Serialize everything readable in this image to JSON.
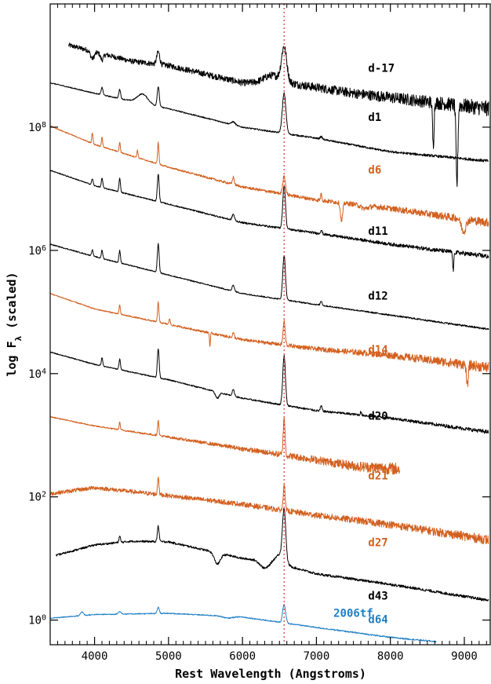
{
  "chart_data": {
    "type": "line",
    "title": "",
    "xlabel": "Rest Wavelength (Angstroms)",
    "ylabel_main": "log F",
    "ylabel_sub": "λ",
    "ylabel_tail": " (scaled)",
    "xlim": [
      3400,
      9350
    ],
    "ylim_log10": [
      -0.4,
      10.0
    ],
    "yscale": "log",
    "x_ticks": [
      4000,
      5000,
      6000,
      7000,
      8000,
      9000
    ],
    "x_tick_labels": [
      "4000",
      "5000",
      "6000",
      "7000",
      "8000",
      "9000"
    ],
    "y_ticks": [
      {
        "exp": 0,
        "base": "10",
        "sup": "0"
      },
      {
        "exp": 2,
        "base": "10",
        "sup": "2"
      },
      {
        "exp": 4,
        "base": "10",
        "sup": "4"
      },
      {
        "exp": 6,
        "base": "10",
        "sup": "6"
      },
      {
        "exp": 8,
        "base": "10",
        "sup": "8"
      }
    ],
    "halpha_marker": {
      "x": 6563,
      "color": "#e03030"
    },
    "colors": {
      "black": "#000000",
      "orange": "#d2601f",
      "blue": "#1f7fc4"
    },
    "spectra": [
      {
        "name": "d-17",
        "color": "#000000",
        "xmin": 3650,
        "xmax": 9330,
        "anchors": [
          [
            3650,
            9.33
          ],
          [
            4500,
            9.07
          ],
          [
            5000,
            9.0
          ],
          [
            6000,
            8.72
          ],
          [
            6600,
            8.72
          ],
          [
            7500,
            8.55
          ],
          [
            9330,
            8.3
          ]
        ],
        "lines": [
          [
            4861,
            0.2,
            20
          ],
          [
            6563,
            0.55,
            35
          ],
          [
            3970,
            -0.12,
            25
          ],
          [
            4100,
            -0.1,
            20
          ],
          [
            6400,
            0.12,
            110
          ],
          [
            8900,
            -1.3,
            12
          ],
          [
            8580,
            -0.7,
            10
          ]
        ],
        "noise_lo": 0.05,
        "noise_hi": 0.16
      },
      {
        "name": "d1",
        "color": "#000000",
        "xmin": 3400,
        "xmax": 9330,
        "anchors": [
          [
            3400,
            8.72
          ],
          [
            4000,
            8.55
          ],
          [
            5000,
            8.3
          ],
          [
            6000,
            8.0
          ],
          [
            7000,
            7.82
          ],
          [
            8000,
            7.6
          ],
          [
            9330,
            7.45
          ]
        ],
        "lines": [
          [
            4101,
            0.12,
            12
          ],
          [
            4340,
            0.15,
            12
          ],
          [
            4650,
            0.15,
            70
          ],
          [
            4861,
            0.32,
            14
          ],
          [
            5876,
            0.05,
            25
          ],
          [
            6563,
            0.65,
            24
          ],
          [
            7065,
            0.04,
            15
          ]
        ],
        "noise_lo": 0.01,
        "noise_hi": 0.03
      },
      {
        "name": "d6",
        "color": "#d2601f",
        "xmin": 3400,
        "xmax": 9330,
        "anchors": [
          [
            3400,
            8.02
          ],
          [
            4000,
            7.72
          ],
          [
            5000,
            7.35
          ],
          [
            6000,
            7.03
          ],
          [
            7000,
            6.82
          ],
          [
            8000,
            6.68
          ],
          [
            9330,
            6.45
          ]
        ],
        "lines": [
          [
            3970,
            0.18,
            8
          ],
          [
            4101,
            0.16,
            8
          ],
          [
            4340,
            0.16,
            8
          ],
          [
            4580,
            0.12,
            8
          ],
          [
            4861,
            0.35,
            9
          ],
          [
            5876,
            0.12,
            12
          ],
          [
            6563,
            0.3,
            18
          ],
          [
            7065,
            0.1,
            10
          ],
          [
            7340,
            -0.3,
            15
          ],
          [
            8990,
            -0.2,
            30
          ],
          [
            7650,
            -0.05,
            50
          ]
        ],
        "noise_lo": 0.01,
        "noise_hi": 0.09
      },
      {
        "name": "d11",
        "color": "#000000",
        "xmin": 3400,
        "xmax": 9330,
        "anchors": [
          [
            3400,
            7.3
          ],
          [
            4000,
            7.05
          ],
          [
            5000,
            6.75
          ],
          [
            6000,
            6.45
          ],
          [
            7000,
            6.28
          ],
          [
            8000,
            6.1
          ],
          [
            9330,
            5.9
          ]
        ],
        "lines": [
          [
            3970,
            0.1,
            10
          ],
          [
            4101,
            0.15,
            10
          ],
          [
            4340,
            0.22,
            10
          ],
          [
            4861,
            0.45,
            12
          ],
          [
            5876,
            0.1,
            15
          ],
          [
            6563,
            0.7,
            18
          ],
          [
            7065,
            0.06,
            12
          ],
          [
            8850,
            -0.3,
            8
          ]
        ],
        "noise_lo": 0.01,
        "noise_hi": 0.05
      },
      {
        "name": "d12",
        "color": "#000000",
        "xmin": 3400,
        "xmax": 9330,
        "anchors": [
          [
            3400,
            6.1
          ],
          [
            4000,
            5.9
          ],
          [
            5000,
            5.6
          ],
          [
            6000,
            5.3
          ],
          [
            7000,
            5.12
          ],
          [
            8000,
            4.95
          ],
          [
            9330,
            4.72
          ]
        ],
        "lines": [
          [
            3970,
            0.1,
            10
          ],
          [
            4101,
            0.13,
            10
          ],
          [
            4340,
            0.2,
            10
          ],
          [
            4861,
            0.47,
            12
          ],
          [
            5876,
            0.1,
            15
          ],
          [
            6563,
            0.72,
            18
          ],
          [
            7065,
            0.07,
            12
          ]
        ],
        "noise_lo": 0.01,
        "noise_hi": 0.02
      },
      {
        "name": "d14",
        "color": "#d2601f",
        "xmin": 3400,
        "xmax": 9330,
        "anchors": [
          [
            3400,
            5.3
          ],
          [
            4000,
            5.05
          ],
          [
            5000,
            4.8
          ],
          [
            6000,
            4.55
          ],
          [
            7000,
            4.4
          ],
          [
            8000,
            4.3
          ],
          [
            9330,
            4.1
          ]
        ],
        "lines": [
          [
            4340,
            0.15,
            8
          ],
          [
            4861,
            0.33,
            9
          ],
          [
            5015,
            0.1,
            8
          ],
          [
            5560,
            -0.22,
            6
          ],
          [
            5876,
            0.08,
            12
          ],
          [
            6563,
            0.38,
            14
          ],
          [
            9040,
            -0.35,
            12
          ]
        ],
        "noise_lo": 0.01,
        "noise_hi": 0.11
      },
      {
        "name": "d20",
        "color": "#000000",
        "xmin": 3400,
        "xmax": 9330,
        "anchors": [
          [
            3400,
            4.35
          ],
          [
            4000,
            4.15
          ],
          [
            5000,
            3.9
          ],
          [
            6000,
            3.6
          ],
          [
            7000,
            3.4
          ],
          [
            8000,
            3.28
          ],
          [
            9330,
            3.05
          ]
        ],
        "lines": [
          [
            4101,
            0.13,
            10
          ],
          [
            4340,
            0.17,
            10
          ],
          [
            4861,
            0.47,
            12
          ],
          [
            5660,
            -0.1,
            25
          ],
          [
            5876,
            0.1,
            15
          ],
          [
            6563,
            0.8,
            18
          ],
          [
            7065,
            0.08,
            12
          ],
          [
            7600,
            0.05,
            8
          ]
        ],
        "noise_lo": 0.01,
        "noise_hi": 0.04
      },
      {
        "name": "d21",
        "color": "#d2601f",
        "xmin": 3400,
        "xmax": 8130,
        "anchors": [
          [
            3400,
            3.3
          ],
          [
            4000,
            3.15
          ],
          [
            5000,
            2.97
          ],
          [
            6000,
            2.78
          ],
          [
            7000,
            2.6
          ],
          [
            7500,
            2.5
          ],
          [
            8130,
            2.45
          ]
        ],
        "lines": [
          [
            4340,
            0.12,
            8
          ],
          [
            4861,
            0.25,
            9
          ],
          [
            6563,
            0.62,
            12
          ]
        ],
        "noise_lo": 0.01,
        "noise_hi": 0.13
      },
      {
        "name": "d27",
        "color": "#d2601f",
        "xmin": 3400,
        "xmax": 9330,
        "anchors": [
          [
            3400,
            2.05
          ],
          [
            4000,
            2.15
          ],
          [
            5000,
            2.02
          ],
          [
            6000,
            1.88
          ],
          [
            7000,
            1.7
          ],
          [
            8000,
            1.55
          ],
          [
            9330,
            1.3
          ]
        ],
        "lines": [
          [
            4861,
            0.3,
            9
          ],
          [
            6563,
            0.45,
            12
          ]
        ],
        "noise_lo": 0.04,
        "noise_hi": 0.1
      },
      {
        "name": "d43",
        "color": "#000000",
        "xmin": 3480,
        "xmax": 9330,
        "anchors": [
          [
            3480,
            1.05
          ],
          [
            4000,
            1.22
          ],
          [
            4500,
            1.28
          ],
          [
            5000,
            1.27
          ],
          [
            6000,
            1.0
          ],
          [
            6400,
            0.95
          ],
          [
            7000,
            0.75
          ],
          [
            8000,
            0.58
          ],
          [
            9330,
            0.32
          ]
        ],
        "lines": [
          [
            4340,
            0.1,
            10
          ],
          [
            4861,
            0.25,
            12
          ],
          [
            5660,
            -0.18,
            40
          ],
          [
            6300,
            -0.12,
            60
          ],
          [
            6563,
            0.82,
            22
          ],
          [
            6510,
            0.15,
            60
          ]
        ],
        "noise_lo": 0.02,
        "noise_hi": 0.03
      },
      {
        "name": "d64",
        "color": "#1f7fc4",
        "xmin": 3400,
        "xmax": 8620,
        "anchors": [
          [
            3400,
            0.03
          ],
          [
            4000,
            0.09
          ],
          [
            5000,
            0.11
          ],
          [
            6000,
            0.05
          ],
          [
            7000,
            -0.12
          ],
          [
            8000,
            -0.28
          ],
          [
            8620,
            -0.35
          ]
        ],
        "lines": [
          [
            3830,
            0.06,
            20
          ],
          [
            4340,
            0.04,
            20
          ],
          [
            4861,
            0.1,
            14
          ],
          [
            6563,
            0.3,
            20
          ],
          [
            5800,
            -0.03,
            60
          ]
        ],
        "noise_lo": 0.01,
        "noise_hi": 0.015
      }
    ],
    "labels": [
      {
        "text": "d-17",
        "color": "#000000",
        "x": 7700,
        "y": 8.9
      },
      {
        "text": "d1",
        "color": "#000000",
        "x": 7700,
        "y": 8.1
      },
      {
        "text": "d6",
        "color": "#d2601f",
        "x": 7700,
        "y": 7.25
      },
      {
        "text": "d11",
        "color": "#000000",
        "x": 7700,
        "y": 6.25
      },
      {
        "text": "d12",
        "color": "#000000",
        "x": 7700,
        "y": 5.2
      },
      {
        "text": "d14",
        "color": "#d2601f",
        "x": 7700,
        "y": 4.33
      },
      {
        "text": "d20",
        "color": "#000000",
        "x": 7700,
        "y": 3.25
      },
      {
        "text": "d21",
        "color": "#d2601f",
        "x": 7700,
        "y": 2.28
      },
      {
        "text": "d27",
        "color": "#d2601f",
        "x": 7700,
        "y": 1.2
      },
      {
        "text": "d43",
        "color": "#000000",
        "x": 7700,
        "y": 0.33
      },
      {
        "text": "2006tf",
        "color": "#1f7fc4",
        "x": 7230,
        "y": 0.05
      },
      {
        "text": "d64",
        "color": "#1f7fc4",
        "x": 7700,
        "y": -0.05
      }
    ]
  }
}
